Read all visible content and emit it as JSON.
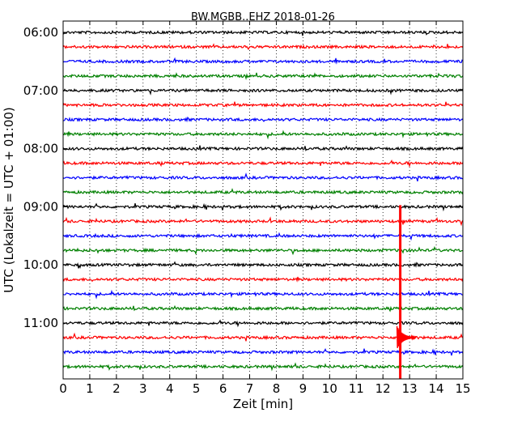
{
  "chart_data": {
    "type": "line",
    "title": "BW.MGBB..EHZ 2018-01-26",
    "xlabel": "Zeit  [min]",
    "ylabel": "UTC (Lokalzeit = UTC + 01:00)",
    "xlim": [
      0,
      15
    ],
    "x_ticks": [
      "0",
      "1",
      "2",
      "3",
      "4",
      "5",
      "6",
      "7",
      "8",
      "9",
      "10",
      "11",
      "12",
      "13",
      "14",
      "15"
    ],
    "y_tick_labels": [
      "06:00",
      "07:00",
      "08:00",
      "09:00",
      "10:00",
      "11:00"
    ],
    "grid": "vertical dotted",
    "trace_colors": [
      "#000000",
      "#ff0000",
      "#0000ff",
      "#008000"
    ],
    "traces": [
      {
        "start": "06:00",
        "color": "#000000"
      },
      {
        "start": "06:15",
        "color": "#ff0000"
      },
      {
        "start": "06:30",
        "color": "#0000ff"
      },
      {
        "start": "06:45",
        "color": "#008000"
      },
      {
        "start": "07:00",
        "color": "#000000"
      },
      {
        "start": "07:15",
        "color": "#ff0000"
      },
      {
        "start": "07:30",
        "color": "#0000ff"
      },
      {
        "start": "07:45",
        "color": "#008000"
      },
      {
        "start": "08:00",
        "color": "#000000"
      },
      {
        "start": "08:15",
        "color": "#ff0000"
      },
      {
        "start": "08:30",
        "color": "#0000ff"
      },
      {
        "start": "08:45",
        "color": "#008000"
      },
      {
        "start": "09:00",
        "color": "#000000"
      },
      {
        "start": "09:15",
        "color": "#ff0000"
      },
      {
        "start": "09:30",
        "color": "#0000ff"
      },
      {
        "start": "09:45",
        "color": "#008000"
      },
      {
        "start": "10:00",
        "color": "#000000"
      },
      {
        "start": "10:15",
        "color": "#ff0000"
      },
      {
        "start": "10:30",
        "color": "#0000ff"
      },
      {
        "start": "10:45",
        "color": "#008000"
      },
      {
        "start": "11:00",
        "color": "#000000"
      },
      {
        "start": "11:15",
        "color": "#ff0000"
      },
      {
        "start": "11:30",
        "color": "#0000ff"
      },
      {
        "start": "11:45",
        "color": "#008000"
      }
    ],
    "events": [
      {
        "trace": "11:15",
        "minute": 12.65,
        "color": "#ff0000"
      }
    ]
  }
}
